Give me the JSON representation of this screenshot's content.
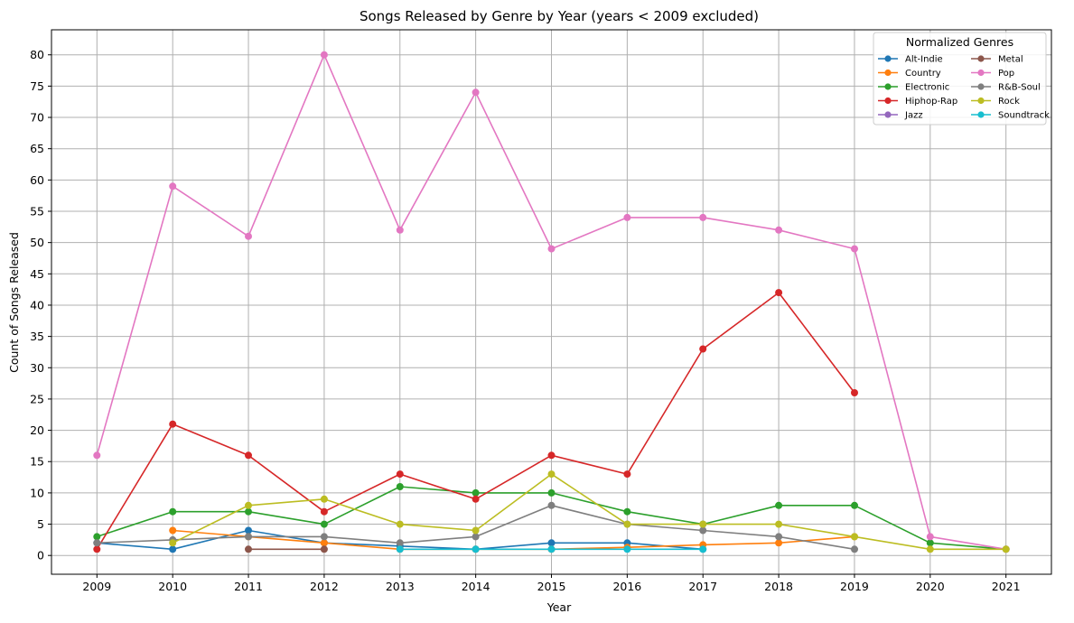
{
  "chart_data": {
    "type": "line",
    "title": "Songs Released by Genre by Year (years < 2009 excluded)",
    "xlabel": "Year",
    "ylabel": "Count of Songs Released",
    "x": [
      2009,
      2010,
      2011,
      2012,
      2013,
      2014,
      2015,
      2016,
      2017,
      2018,
      2019,
      2020,
      2021
    ],
    "ylim": [
      -3,
      84
    ],
    "yticks": [
      0,
      5,
      10,
      15,
      20,
      25,
      30,
      35,
      40,
      45,
      50,
      55,
      60,
      65,
      70,
      75,
      80
    ],
    "grid": true,
    "legend": {
      "title": "Normalized Genres",
      "placement": "top-right",
      "columns": 2
    },
    "series": [
      {
        "name": "Alt-Indie",
        "color": "#1f77b4",
        "values": [
          2,
          1,
          4,
          2,
          1.5,
          1,
          2,
          2,
          1,
          null,
          null,
          null,
          null
        ]
      },
      {
        "name": "Country",
        "color": "#ff7f0e",
        "values": [
          null,
          4,
          3,
          2,
          1,
          1,
          1,
          1.3,
          1.7,
          2,
          3,
          null,
          null
        ]
      },
      {
        "name": "Electronic",
        "color": "#2ca02c",
        "values": [
          3,
          7,
          7,
          5,
          11,
          10,
          10,
          7,
          5,
          8,
          8,
          2,
          1
        ]
      },
      {
        "name": "Hiphop-Rap",
        "color": "#d62728",
        "values": [
          1,
          21,
          16,
          7,
          13,
          9,
          16,
          13,
          33,
          42,
          26,
          null,
          null
        ]
      },
      {
        "name": "Jazz",
        "color": "#9467bd",
        "values": [
          null,
          null,
          null,
          null,
          null,
          null,
          null,
          null,
          null,
          null,
          null,
          null,
          null
        ]
      },
      {
        "name": "Metal",
        "color": "#8c564b",
        "values": [
          null,
          null,
          1,
          1,
          null,
          null,
          null,
          null,
          null,
          null,
          null,
          null,
          null
        ]
      },
      {
        "name": "Pop",
        "color": "#e377c2",
        "values": [
          16,
          59,
          51,
          80,
          52,
          74,
          49,
          54,
          54,
          52,
          49,
          3,
          1
        ]
      },
      {
        "name": "R&B-Soul",
        "color": "#7f7f7f",
        "values": [
          2,
          2.5,
          3,
          3,
          2,
          3,
          8,
          5,
          4,
          3,
          1,
          null,
          null
        ]
      },
      {
        "name": "Rock",
        "color": "#bcbd22",
        "values": [
          null,
          2,
          8,
          9,
          5,
          4,
          13,
          5,
          5,
          5,
          3,
          1,
          1
        ]
      },
      {
        "name": "Soundtrack",
        "color": "#17becf",
        "values": [
          null,
          null,
          null,
          null,
          1,
          1,
          1,
          1,
          1,
          null,
          null,
          null,
          null
        ]
      }
    ]
  }
}
